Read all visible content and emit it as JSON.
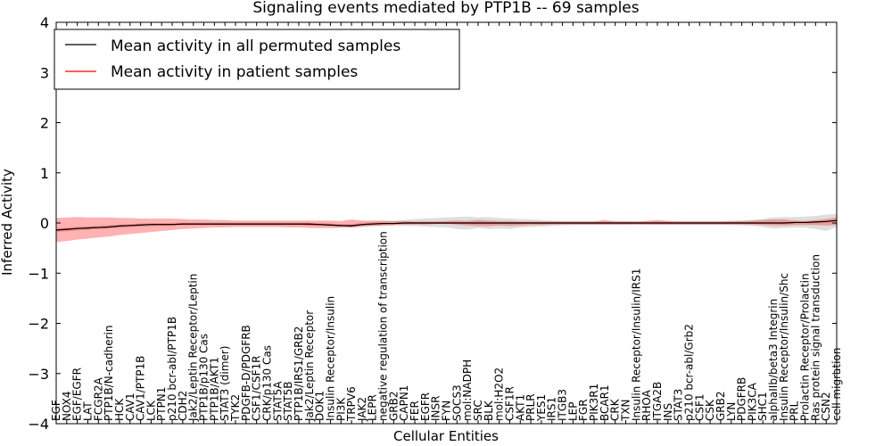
{
  "chart_data": {
    "type": "line",
    "title": "Signaling events mediated by PTP1B -- 69 samples",
    "xlabel": "Cellular Entities",
    "ylabel": "Inferred Activity",
    "ylim": [
      -4,
      4
    ],
    "yticks": [
      -4,
      -3,
      -2,
      -1,
      0,
      1,
      2,
      3,
      4
    ],
    "ytick_labels": [
      "−4",
      "−3",
      "−2",
      "−1",
      "0",
      "1",
      "2",
      "3",
      "4"
    ],
    "legend_position": "top-left",
    "categories": [
      "EGF",
      "NOX4",
      "EGF/EGFR",
      "LAT",
      "FCGR2A",
      "PTP1B/N-cadherin",
      "HCK",
      "CAV1",
      "CAV1/PTP1B",
      "LCK",
      "PTPN1",
      "p210 bcr-abl/PTP1B",
      "CDH2",
      "Jak2/Leptin Receptor/Leptin",
      "PTP1B/p130 Cas",
      "PTP1B/AKT1",
      "STAT3 (dimer)",
      "TYK2",
      "PDGFB-D/PDGFRB",
      "CSF1/CSF1R",
      "CRK/p130 Cas",
      "STAT5A",
      "STAT5B",
      "PTP1B/IRS1/GRB2",
      "Jak2/Leptin Receptor",
      "DOK1",
      "Insulin Receptor/Insulin",
      "PI3K",
      "TRPV6",
      "JAK2",
      "LEPR",
      "negative regulation of transcription",
      "GRB2",
      "CAPN1",
      "FER",
      "EGFR",
      "INSR",
      "FYN",
      "SOCS3",
      "mol:NADPH",
      "SRC",
      "BLK",
      "mol:H2O2",
      "CSF1R",
      "AKT1",
      "PRLR",
      "YES1",
      "IRS1",
      "ITGB3",
      "LEP",
      "FGR",
      "PIK3R1",
      "BCAR1",
      "CRK",
      "TXN",
      "Insulin Receptor/Insulin/IRS1",
      "RHOA",
      "ITGA2B",
      "INS",
      "STAT3",
      "p210 bcr-abl/Grb2",
      "CSF1",
      "CSK",
      "GRB2",
      "LYN",
      "PDGFRB",
      "PIK3CA",
      "SHC1",
      "alphaIIb/beta3 Integrin",
      "Insulin Receptor/Insulin/Shc",
      "PRL",
      "Prolactin Receptor/Prolactin",
      "Ras protein signal transduction",
      "CSN2",
      "cell migration"
    ],
    "series": [
      {
        "name": "Mean activity in all permuted samples",
        "color": "#000000",
        "values": [
          -0.14,
          -0.13,
          -0.11,
          -0.1,
          -0.09,
          -0.08,
          -0.06,
          -0.05,
          -0.04,
          -0.03,
          -0.03,
          -0.03,
          -0.02,
          -0.02,
          -0.02,
          -0.02,
          -0.02,
          -0.02,
          -0.02,
          -0.02,
          -0.02,
          -0.02,
          -0.02,
          -0.02,
          -0.02,
          -0.03,
          -0.04,
          -0.05,
          -0.06,
          -0.03,
          -0.02,
          -0.01,
          -0.01,
          0,
          0,
          0,
          0,
          0,
          0,
          0,
          0,
          0,
          0,
          0,
          0,
          0,
          0,
          0,
          0,
          0,
          0,
          0,
          0,
          0,
          0,
          0,
          0,
          0,
          0,
          0,
          0,
          0,
          0,
          0,
          0,
          0,
          0,
          0,
          0,
          0,
          0.01,
          0.01,
          0.02,
          0.03,
          0.05
        ],
        "band_lower": [
          -0.18,
          -0.17,
          -0.15,
          -0.14,
          -0.12,
          -0.11,
          -0.1,
          -0.09,
          -0.08,
          -0.07,
          -0.06,
          -0.06,
          -0.05,
          -0.05,
          -0.05,
          -0.05,
          -0.05,
          -0.05,
          -0.05,
          -0.05,
          -0.05,
          -0.05,
          -0.05,
          -0.05,
          -0.05,
          -0.06,
          -0.07,
          -0.09,
          -0.1,
          -0.08,
          -0.06,
          -0.06,
          -0.05,
          -0.06,
          -0.06,
          -0.07,
          -0.08,
          -0.09,
          -0.12,
          -0.13,
          -0.1,
          -0.12,
          -0.11,
          -0.12,
          -0.09,
          -0.08,
          -0.07,
          -0.06,
          -0.05,
          -0.04,
          -0.04,
          -0.04,
          -0.04,
          -0.04,
          -0.04,
          -0.03,
          -0.04,
          -0.04,
          -0.04,
          -0.04,
          -0.04,
          -0.04,
          -0.04,
          -0.04,
          -0.04,
          -0.05,
          -0.06,
          -0.08,
          -0.11,
          -0.1,
          -0.09,
          -0.09,
          -0.12,
          -0.16,
          -0.08
        ],
        "band_upper": [
          -0.1,
          -0.09,
          -0.07,
          -0.06,
          -0.05,
          -0.04,
          -0.03,
          -0.02,
          -0.01,
          0,
          0,
          0,
          0.01,
          0.01,
          0.01,
          0.01,
          0.01,
          0.01,
          0.01,
          0.01,
          0.01,
          0.01,
          0.01,
          0.01,
          0.01,
          0,
          -0.01,
          -0.02,
          -0.02,
          0.01,
          0.02,
          0.03,
          0.04,
          0.06,
          0.08,
          0.09,
          0.1,
          0.11,
          0.12,
          0.13,
          0.11,
          0.12,
          0.1,
          0.09,
          0.08,
          0.07,
          0.06,
          0.05,
          0.04,
          0.04,
          0.04,
          0.04,
          0.04,
          0.04,
          0.04,
          0.03,
          0.04,
          0.04,
          0.04,
          0.04,
          0.04,
          0.04,
          0.04,
          0.04,
          0.04,
          0.05,
          0.06,
          0.08,
          0.11,
          0.12,
          0.12,
          0.13,
          0.14,
          0.17,
          0.18
        ]
      },
      {
        "name": "Mean activity in patient samples",
        "color": "#ff0000",
        "values": [
          -0.14,
          -0.12,
          -0.11,
          -0.1,
          -0.09,
          -0.08,
          -0.06,
          -0.05,
          -0.04,
          -0.03,
          -0.03,
          -0.03,
          -0.02,
          -0.02,
          -0.02,
          -0.02,
          -0.02,
          -0.02,
          -0.02,
          -0.02,
          -0.02,
          -0.02,
          -0.02,
          -0.02,
          -0.03,
          -0.03,
          -0.04,
          -0.05,
          -0.05,
          -0.03,
          -0.02,
          -0.01,
          -0.01,
          0,
          0,
          0,
          0,
          0,
          0,
          0,
          0,
          0,
          0,
          0,
          0,
          0,
          0,
          0,
          0,
          0,
          0,
          0,
          0,
          0,
          0,
          0,
          0,
          0,
          0,
          0,
          0,
          0,
          0,
          0,
          0,
          0,
          0,
          0,
          0,
          0,
          0.01,
          0.01,
          0.02,
          0.03,
          0.05
        ],
        "band_lower": [
          -0.38,
          -0.36,
          -0.33,
          -0.31,
          -0.29,
          -0.27,
          -0.24,
          -0.22,
          -0.2,
          -0.18,
          -0.16,
          -0.14,
          -0.12,
          -0.11,
          -0.1,
          -0.09,
          -0.09,
          -0.08,
          -0.08,
          -0.08,
          -0.08,
          -0.08,
          -0.09,
          -0.09,
          -0.1,
          -0.1,
          -0.1,
          -0.09,
          -0.08,
          -0.07,
          -0.06,
          -0.05,
          -0.04,
          -0.03,
          -0.03,
          -0.03,
          -0.02,
          -0.02,
          -0.03,
          -0.05,
          -0.06,
          -0.06,
          -0.05,
          -0.06,
          -0.05,
          -0.04,
          -0.04,
          -0.03,
          -0.03,
          -0.03,
          -0.03,
          -0.03,
          -0.03,
          -0.03,
          -0.03,
          -0.03,
          -0.03,
          -0.03,
          -0.03,
          -0.03,
          -0.03,
          -0.03,
          -0.03,
          -0.03,
          -0.03,
          -0.03,
          -0.03,
          -0.04,
          -0.05,
          -0.05,
          -0.04,
          -0.04,
          -0.04,
          -0.05,
          -0.04
        ],
        "band_upper": [
          0.1,
          0.11,
          0.12,
          0.11,
          0.11,
          0.11,
          0.1,
          0.1,
          0.09,
          0.09,
          0.09,
          0.09,
          0.08,
          0.07,
          0.07,
          0.06,
          0.06,
          0.05,
          0.05,
          0.05,
          0.05,
          0.05,
          0.05,
          0.05,
          0.05,
          0.05,
          0.05,
          0.04,
          0.07,
          0.05,
          0.05,
          0.05,
          0.04,
          0.04,
          0.03,
          0.03,
          0.03,
          0.04,
          0.05,
          0.04,
          0.06,
          0.05,
          0.04,
          0.04,
          0.03,
          0.03,
          0.03,
          0.03,
          0.03,
          0.03,
          0.03,
          0.03,
          0.06,
          0.03,
          0.03,
          0.03,
          0.04,
          0.06,
          0.04,
          0.03,
          0.03,
          0.03,
          0.03,
          0.03,
          0.04,
          0.04,
          0.05,
          0.06,
          0.07,
          0.07,
          0.05,
          0.04,
          0.06,
          0.08,
          0.11
        ]
      }
    ]
  }
}
